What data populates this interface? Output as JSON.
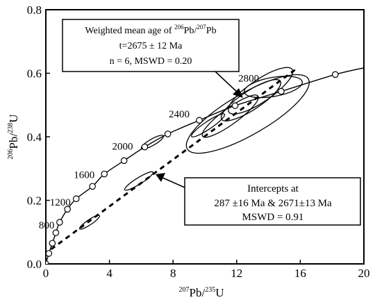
{
  "chart_data": {
    "type": "scatter",
    "subtype": "U-Pb concordia diagram",
    "xlabel": {
      "pre": "207",
      "main1": "Pb/",
      "sup2": "235",
      "main2": "U"
    },
    "ylabel": {
      "pre": "206",
      "main1": "Pb/",
      "sup2": "238",
      "main2": "U"
    },
    "xlim": [
      0,
      20
    ],
    "ylim": [
      0,
      0.8
    ],
    "x_ticks": [
      0,
      4,
      8,
      12,
      16,
      20
    ],
    "x_tick_labels": [
      "0",
      "4",
      "8",
      "12",
      "16",
      "20"
    ],
    "y_ticks": [
      0.0,
      0.2,
      0.4,
      0.6,
      0.8
    ],
    "y_tick_labels": [
      "0.0",
      "0.2",
      "0.4",
      "0.6",
      "0.8"
    ],
    "grid": false,
    "concordia_markers": [
      {
        "x": 0.0,
        "y": 0.0
      },
      {
        "x": 0.19,
        "y": 0.033
      },
      {
        "x": 0.41,
        "y": 0.065
      },
      {
        "x": 0.63,
        "y": 0.098
      },
      {
        "x": 0.87,
        "y": 0.131
      },
      {
        "x": 1.36,
        "y": 0.172
      },
      {
        "x": 1.91,
        "y": 0.205
      },
      {
        "x": 2.93,
        "y": 0.244
      },
      {
        "x": 3.68,
        "y": 0.283
      },
      {
        "x": 4.92,
        "y": 0.325
      },
      {
        "x": 6.22,
        "y": 0.368
      },
      {
        "x": 7.67,
        "y": 0.409
      },
      {
        "x": 9.65,
        "y": 0.452
      },
      {
        "x": 11.9,
        "y": 0.498
      },
      {
        "x": 14.8,
        "y": 0.543
      },
      {
        "x": 18.2,
        "y": 0.596
      }
    ],
    "concordia_curve": [
      [
        0,
        0
      ],
      [
        0.19,
        0.033
      ],
      [
        0.41,
        0.065
      ],
      [
        0.63,
        0.098
      ],
      [
        0.87,
        0.131
      ],
      [
        1.36,
        0.172
      ],
      [
        1.91,
        0.205
      ],
      [
        2.93,
        0.244
      ],
      [
        3.68,
        0.283
      ],
      [
        4.92,
        0.325
      ],
      [
        6.22,
        0.368
      ],
      [
        7.67,
        0.409
      ],
      [
        9.65,
        0.452
      ],
      [
        11.9,
        0.498
      ],
      [
        14.8,
        0.543
      ],
      [
        18.2,
        0.596
      ],
      [
        20.0,
        0.617
      ]
    ],
    "age_labels": [
      {
        "text": "800",
        "x": 0.87,
        "y": 0.131
      },
      {
        "text": "1200",
        "x": 1.91,
        "y": 0.205
      },
      {
        "text": "1600",
        "x": 3.68,
        "y": 0.283
      },
      {
        "text": "2000",
        "x": 6.22,
        "y": 0.368
      },
      {
        "text": "2400",
        "x": 9.65,
        "y": 0.452
      },
      {
        "text": "2800",
        "x": 12.8,
        "y": 0.53
      }
    ],
    "discordia_line": {
      "start": [
        0.33,
        0.046
      ],
      "end": [
        15.7,
        0.612
      ]
    },
    "error_ellipses": [
      {
        "cx": 2.75,
        "cy": 0.131,
        "rx": 0.75,
        "ry": 0.008,
        "angle": 34
      },
      {
        "cx": 6.7,
        "cy": 0.383,
        "rx": 0.8,
        "ry": 0.01,
        "angle": 30
      },
      {
        "cx": 5.85,
        "cy": 0.261,
        "rx": 1.05,
        "ry": 0.01,
        "angle": 32
      },
      {
        "cx": 10.2,
        "cy": 0.436,
        "rx": 1.25,
        "ry": 0.012,
        "angle": 34
      },
      {
        "cx": 11.6,
        "cy": 0.465,
        "rx": 2.15,
        "ry": 0.025,
        "angle": 36
      },
      {
        "cx": 12.9,
        "cy": 0.515,
        "rx": 2.2,
        "ry": 0.03,
        "angle": 33
      },
      {
        "cx": 13.5,
        "cy": 0.545,
        "rx": 2.4,
        "ry": 0.035,
        "angle": 34
      },
      {
        "cx": 14.3,
        "cy": 0.557,
        "rx": 1.85,
        "ry": 0.03,
        "angle": 10
      },
      {
        "cx": 12.7,
        "cy": 0.472,
        "rx": 4.4,
        "ry": 0.065,
        "angle": 30
      }
    ]
  },
  "annotations": {
    "weighted_mean": {
      "line1_prefix": "Weighted mean age of ",
      "line1_sup1": "206",
      "line1_mid": "Pb/",
      "line1_sup2": "207",
      "line1_suffix": "Pb",
      "line2": "t=2675 ± 12 Ma",
      "line3": "n = 6, MSWD = 0.20"
    },
    "intercepts": {
      "line1": "Intercepts at",
      "line2": "287  ±16 Ma & 2671±13 Ma",
      "line3": "MSWD = 0.91"
    }
  }
}
